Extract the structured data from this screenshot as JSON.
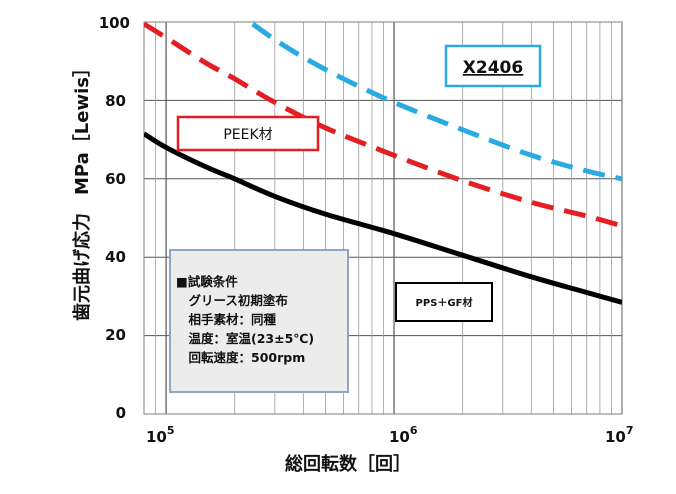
{
  "chart_data": {
    "type": "line",
    "x_scale": "log",
    "xlim": [
      80000,
      10000000
    ],
    "ylim": [
      0,
      100
    ],
    "y_ticks": [
      "0",
      "20",
      "40",
      "60",
      "80",
      "100"
    ],
    "x_ticks": [
      {
        "base": "10",
        "exp": "5",
        "value": 100000
      },
      {
        "base": "10",
        "exp": "6",
        "value": 1000000
      },
      {
        "base": "10",
        "exp": "7",
        "value": 10000000
      }
    ],
    "xlabel": "総回転数［回］",
    "ylabel": "歯元曲げ応力　MPa［Lewis］",
    "grid": true,
    "series": [
      {
        "name": "X2406",
        "color": "#29ABE2",
        "dash": "dashed",
        "x": [
          240000,
          300000,
          400000,
          600000,
          1000000,
          2000000,
          4000000,
          7000000,
          10000000
        ],
        "y": [
          99.5,
          95.5,
          91,
          85.5,
          79.5,
          72.5,
          66,
          62,
          60
        ]
      },
      {
        "name": "PEEK材",
        "color": "#E31E24",
        "dash": "dashed",
        "x": [
          80000,
          100000,
          150000,
          200000,
          300000,
          500000,
          1000000,
          2000000,
          4000000,
          7000000,
          10000000
        ],
        "y": [
          99.5,
          96,
          89.5,
          85.5,
          79.5,
          73,
          66,
          59.5,
          54,
          50.5,
          48
        ]
      },
      {
        "name": "PPS＋GF材",
        "color": "#000000",
        "dash": "solid",
        "x": [
          80000,
          100000,
          150000,
          200000,
          300000,
          500000,
          1000000,
          2000000,
          4000000,
          7000000,
          10000000
        ],
        "y": [
          71.5,
          68,
          63,
          60,
          55.5,
          51,
          46,
          40.5,
          35,
          31,
          28.5
        ]
      }
    ]
  },
  "test_conditions": {
    "lines": [
      "■試験条件",
      "　グリース初期塗布",
      "　相手素材：同種",
      "　温度：室温(23±5℃)",
      "　回転速度：500rpm"
    ]
  },
  "labels": {
    "x2406": "X2406",
    "peek": "PEEK材",
    "pps": "PPS＋GF材"
  }
}
